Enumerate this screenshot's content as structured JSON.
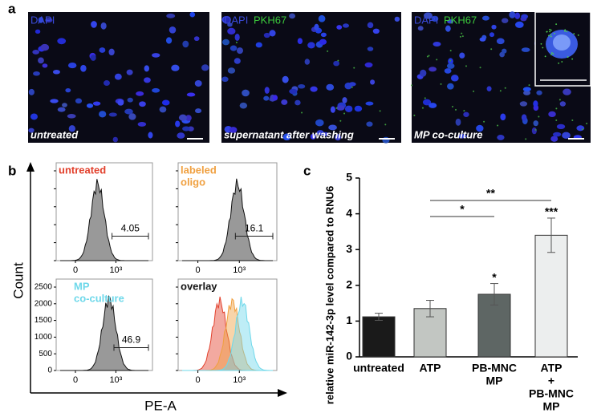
{
  "panels": {
    "a": "a",
    "b": "b",
    "c": "c"
  },
  "microscopy": {
    "stains": {
      "dapi": "DAPI",
      "pkh": "PKH67"
    },
    "images": [
      {
        "caption": "untreated"
      },
      {
        "caption": "supernatant after washing"
      },
      {
        "caption": "MP co-culture"
      }
    ]
  },
  "flow": {
    "y_label": "Count",
    "x_label": "PE-A",
    "xticks": [
      "0",
      "10³"
    ],
    "yticks": [
      "0",
      "500",
      "1000",
      "1500",
      "2000",
      "2500"
    ],
    "histograms": [
      {
        "label": [
          "untreated"
        ],
        "color": "#e2402c",
        "gate": "4.05"
      },
      {
        "label": [
          "labeled",
          "oligo"
        ],
        "color": "#f0a040",
        "gate": "16.1"
      },
      {
        "label": [
          "MP",
          "co-culture"
        ],
        "color": "#6ed8ea",
        "gate": "46.9"
      },
      {
        "label": [
          "overlay"
        ],
        "color": "#111111"
      }
    ]
  },
  "chart_data": {
    "type": "bar",
    "y_label": "relative  miR-142-3p level compared to RNU6",
    "categories": [
      [
        "untreated"
      ],
      [
        "ATP"
      ],
      [
        "PB-MNC",
        "MP"
      ],
      [
        "ATP",
        "+",
        "PB-MNC",
        "MP"
      ]
    ],
    "values": [
      1.12,
      1.35,
      1.75,
      3.4
    ],
    "errors": [
      0.1,
      0.23,
      0.3,
      0.48
    ],
    "colors": [
      "#1a1a1a",
      "#c2c6c2",
      "#5e6664",
      "#eceeee"
    ],
    "ylim": [
      0,
      5
    ],
    "yticks": [
      0,
      1,
      2,
      3,
      4,
      5
    ],
    "star_labels": [
      null,
      null,
      "*",
      "***"
    ],
    "brackets": [
      {
        "label": "*"
      },
      {
        "label": "**"
      }
    ]
  }
}
